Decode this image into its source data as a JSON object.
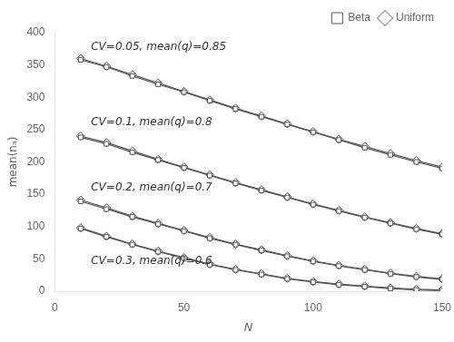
{
  "chart_data": {
    "type": "line",
    "xlabel": "N",
    "ylabel": "mean(nₐ)",
    "x": [
      10,
      20,
      30,
      40,
      50,
      60,
      70,
      80,
      90,
      100,
      110,
      120,
      130,
      140,
      150
    ],
    "series": [
      {
        "name": "Beta",
        "color": "#555555",
        "marker": "square",
        "line_style": "solid",
        "values": [
          358,
          347,
          333,
          320,
          308,
          295,
          282,
          270,
          258,
          246,
          234,
          222,
          211,
          200,
          190
        ]
      },
      {
        "name": "Uniform",
        "color": "#555555",
        "marker": "diamond",
        "line_style": "solid",
        "values": [
          360,
          348,
          335,
          322,
          309,
          296,
          283,
          271,
          259,
          247,
          235,
          224,
          213,
          202,
          192
        ]
      },
      {
        "name": "Beta",
        "color": "#555555",
        "marker": "square",
        "line_style": "solid",
        "values": [
          238,
          228,
          215,
          203,
          191,
          179,
          167,
          156,
          145,
          134,
          124,
          114,
          105,
          96,
          88
        ]
      },
      {
        "name": "Uniform",
        "color": "#555555",
        "marker": "diamond",
        "line_style": "solid",
        "values": [
          240,
          230,
          217,
          204,
          192,
          180,
          168,
          157,
          146,
          135,
          125,
          115,
          106,
          97,
          89
        ]
      },
      {
        "name": "Beta",
        "color": "#555555",
        "marker": "square",
        "line_style": "solid",
        "values": [
          139,
          127,
          115,
          104,
          93,
          82,
          72,
          63,
          54,
          46,
          39,
          33,
          27,
          22,
          18
        ]
      },
      {
        "name": "Uniform",
        "color": "#555555",
        "marker": "diamond",
        "line_style": "solid",
        "values": [
          141,
          129,
          116,
          105,
          94,
          83,
          73,
          64,
          55,
          47,
          40,
          34,
          28,
          23,
          19
        ]
      },
      {
        "name": "Beta",
        "color": "#555555",
        "marker": "square",
        "line_style": "solid",
        "values": [
          97,
          84,
          72,
          61,
          51,
          41,
          33,
          26,
          19,
          14,
          10,
          7,
          4,
          2,
          1
        ]
      },
      {
        "name": "Uniform",
        "color": "#555555",
        "marker": "diamond",
        "line_style": "solid",
        "values": [
          98,
          85,
          73,
          62,
          52,
          42,
          34,
          27,
          20,
          15,
          11,
          8,
          5,
          3,
          2
        ]
      }
    ],
    "annotations": [
      {
        "text": "CV=0.05, mean(q)=0.85",
        "x": 14,
        "y": 370
      },
      {
        "text": "CV=0.1, mean(q)=0.8",
        "x": 14,
        "y": 253
      },
      {
        "text": "CV=0.2, mean(q)=0.7",
        "x": 14,
        "y": 152
      },
      {
        "text": "CV=0.3, mean(q)=0.6",
        "x": 14,
        "y": 38
      }
    ],
    "xlim": [
      0,
      150
    ],
    "ylim": [
      0,
      400
    ],
    "xticks": [
      0,
      50,
      100,
      150
    ],
    "yticks": [
      0,
      50,
      100,
      150,
      200,
      250,
      300,
      350,
      400
    ],
    "grid": false,
    "legend": "upper right"
  }
}
